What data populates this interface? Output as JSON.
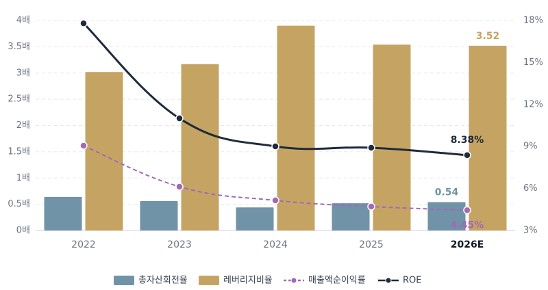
{
  "chart_data": {
    "type": "bar-line",
    "categories": [
      "2022",
      "2023",
      "2024",
      "2025",
      "2026E"
    ],
    "ylim": [
      0,
      4
    ],
    "yticks": [
      {
        "value": 0,
        "label": "0배"
      },
      {
        "value": 0.5,
        "label": "0.5배"
      },
      {
        "value": 1,
        "label": "1배"
      },
      {
        "value": 1.5,
        "label": "1.5배"
      },
      {
        "value": 2,
        "label": "2배"
      },
      {
        "value": 2.5,
        "label": "2.5배"
      },
      {
        "value": 3,
        "label": "3배"
      },
      {
        "value": 3.5,
        "label": "3.5배"
      },
      {
        "value": 4,
        "label": "4배"
      }
    ],
    "y2lim": [
      3,
      18
    ],
    "y2ticks": [
      {
        "value": 3,
        "label": "3%"
      },
      {
        "value": 6,
        "label": "6%"
      },
      {
        "value": 9,
        "label": "9%"
      },
      {
        "value": 12,
        "label": "12%"
      },
      {
        "value": 15,
        "label": "15%"
      },
      {
        "value": 18,
        "label": "18%"
      }
    ],
    "grid": true,
    "legend": "bottom",
    "series": [
      {
        "name": "총자산회전율",
        "type": "bar",
        "color": "#7093a8",
        "values": [
          0.64,
          0.56,
          0.44,
          0.52,
          0.54
        ],
        "value_labels": [
          null,
          null,
          null,
          null,
          "0.54"
        ]
      },
      {
        "name": "레버리지비율",
        "type": "bar",
        "color": "#c5a463",
        "values": [
          3.02,
          3.17,
          3.9,
          3.54,
          3.52
        ],
        "value_labels": [
          null,
          null,
          null,
          null,
          "3.52"
        ]
      },
      {
        "name": "매출액순이익률",
        "type": "line",
        "axis": "y2",
        "dashed": true,
        "color": "#a268b8",
        "values": [
          9.06,
          6.13,
          5.15,
          4.71,
          4.45
        ],
        "value_labels": [
          null,
          null,
          null,
          null,
          "4.45%"
        ]
      },
      {
        "name": "ROE",
        "type": "line",
        "axis": "y2",
        "dashed": false,
        "color": "#1f2a3b",
        "values": [
          17.8,
          11.01,
          9.01,
          8.91,
          8.38
        ],
        "value_labels": [
          null,
          null,
          null,
          null,
          "8.38%"
        ]
      }
    ]
  }
}
